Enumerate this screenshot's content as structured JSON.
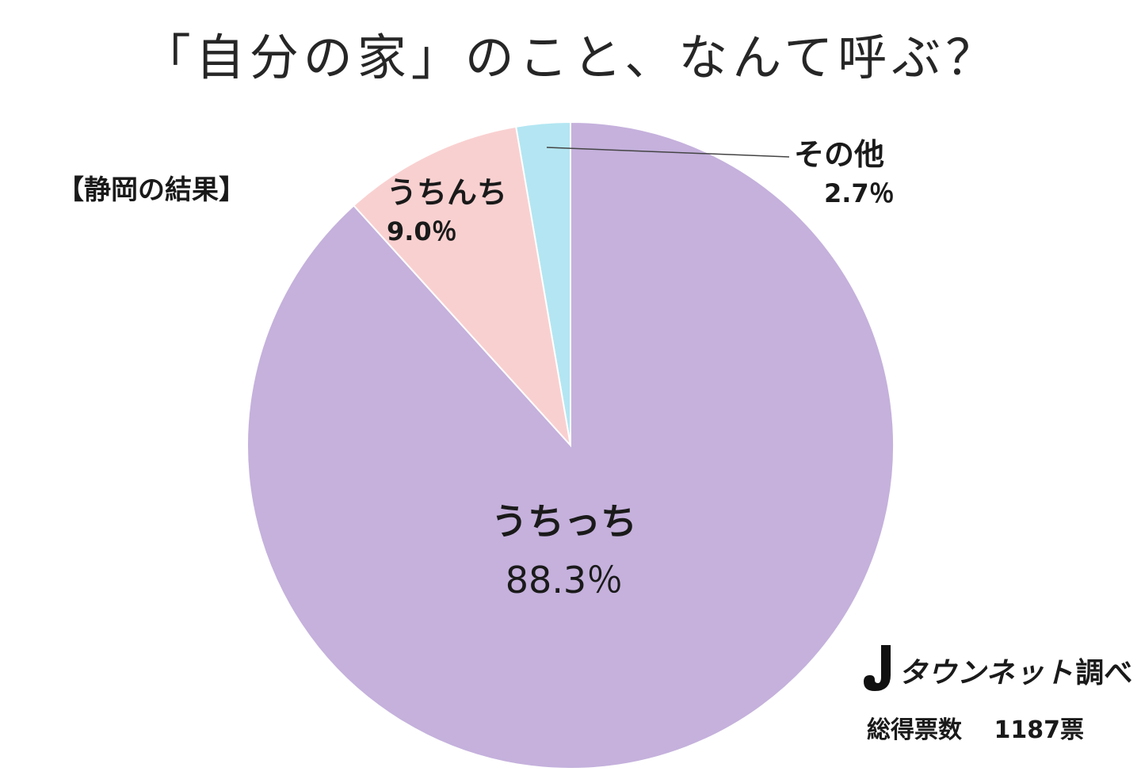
{
  "chart_data": {
    "type": "pie",
    "title": "「自分の家」のこと、なんて呼ぶ？",
    "subtitle": "【静岡の結果】",
    "slices": [
      {
        "label": "その他",
        "value": 2.7,
        "value_label": "2.7％",
        "color": "#b3e6f2"
      },
      {
        "label": "うちんち",
        "value": 9.0,
        "value_label": "9.0％",
        "color": "#f9d0d0"
      },
      {
        "label": "うちっち",
        "value": 88.3,
        "value_label": "88.3％",
        "color": "#c5b1dc"
      }
    ],
    "start_angle": "12 o'clock",
    "direction": "counter-clockwise"
  },
  "source": {
    "brand": "タウンネット",
    "suffix": "調べ",
    "votes_label": "総得票数",
    "votes_value": "1187票"
  }
}
